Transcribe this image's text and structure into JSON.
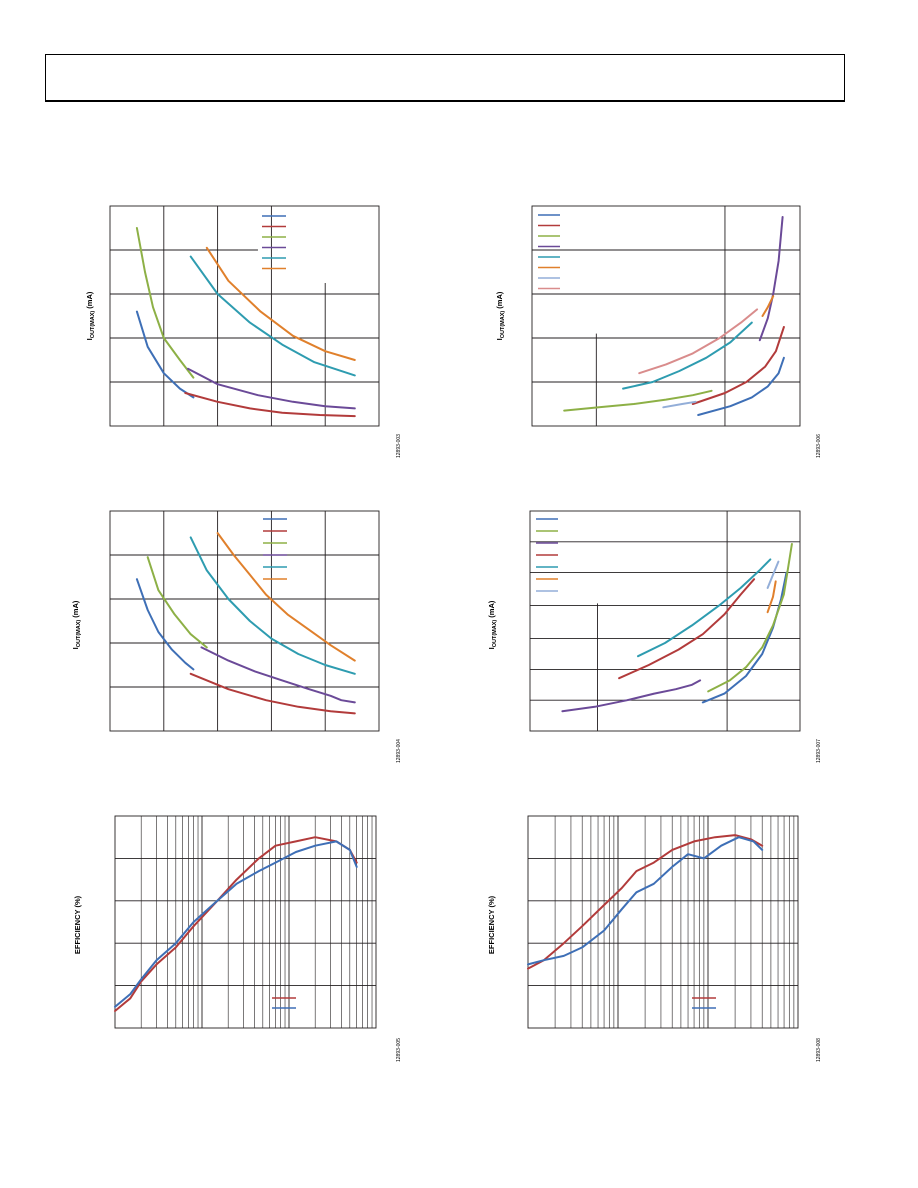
{
  "colors": {
    "blue": "#3e6fb6",
    "red": "#b23b3b",
    "green": "#8db046",
    "purple": "#6b4a98",
    "teal": "#2e9cb0",
    "orange": "#e0802c",
    "lightblue": "#93aed8",
    "pink": "#d98c8c"
  },
  "charts": [
    {
      "ylabel": "I",
      "ylabel_sub": "OUT(MAX)",
      "ylabel_unit": "(mA)",
      "fig_id": "12893-003"
    },
    {
      "ylabel": "I",
      "ylabel_sub": "OUT(MAX)",
      "ylabel_unit": "(mA)",
      "fig_id": "12893-006"
    },
    {
      "ylabel": "I",
      "ylabel_sub": "OUT(MAX)",
      "ylabel_unit": "(mA)",
      "fig_id": "12893-004"
    },
    {
      "ylabel": "I",
      "ylabel_sub": "OUT(MAX)",
      "ylabel_unit": "(mA)",
      "fig_id": "12893-007"
    },
    {
      "ylabel": "EFFICIENCY (%)",
      "fig_id": "12893-005"
    },
    {
      "ylabel": "EFFICIENCY (%)",
      "fig_id": "12893-008"
    }
  ],
  "chart_data": [
    {
      "type": "line",
      "xlim": [
        0,
        100
      ],
      "ylim": [
        0,
        100
      ],
      "grid": true,
      "legend": "top-right",
      "series": [
        {
          "color": "blue",
          "points": [
            [
              10,
              52
            ],
            [
              14,
              36
            ],
            [
              20,
              24
            ],
            [
              26,
              17
            ],
            [
              31,
              13
            ]
          ]
        },
        {
          "color": "red",
          "points": [
            [
              28,
              15
            ],
            [
              40,
              11
            ],
            [
              52,
              8
            ],
            [
              64,
              6
            ],
            [
              78,
              5
            ],
            [
              91,
              4.5
            ]
          ]
        },
        {
          "color": "green",
          "points": [
            [
              10,
              90
            ],
            [
              13,
              70
            ],
            [
              16,
              54
            ],
            [
              20,
              40
            ],
            [
              26,
              30
            ],
            [
              31,
              22
            ]
          ]
        },
        {
          "color": "purple",
          "points": [
            [
              29,
              26
            ],
            [
              40,
              19
            ],
            [
              55,
              14
            ],
            [
              68,
              11
            ],
            [
              80,
              9
            ],
            [
              91,
              8
            ]
          ]
        },
        {
          "color": "teal",
          "points": [
            [
              30,
              77
            ],
            [
              40,
              60
            ],
            [
              52,
              47
            ],
            [
              64,
              37
            ],
            [
              76,
              29
            ],
            [
              91,
              23
            ]
          ]
        },
        {
          "color": "orange",
          "points": [
            [
              36,
              81
            ],
            [
              44,
              66
            ],
            [
              56,
              52
            ],
            [
              68,
              41
            ],
            [
              80,
              34
            ],
            [
              91,
              30
            ]
          ]
        }
      ]
    },
    {
      "type": "line",
      "xlim": [
        0,
        100
      ],
      "ylim": [
        0,
        100
      ],
      "grid": true,
      "legend": "top-left",
      "series": [
        {
          "color": "blue",
          "points": [
            [
              62,
              5
            ],
            [
              74,
              9
            ],
            [
              82,
              13
            ],
            [
              88,
              18
            ],
            [
              92,
              24
            ],
            [
              94,
              31
            ]
          ]
        },
        {
          "color": "red",
          "points": [
            [
              60,
              10
            ],
            [
              72,
              15
            ],
            [
              80,
              20
            ],
            [
              87,
              27
            ],
            [
              91,
              34
            ],
            [
              94,
              45
            ]
          ]
        },
        {
          "color": "green",
          "points": [
            [
              12,
              7
            ],
            [
              25,
              8.5
            ],
            [
              38,
              10
            ],
            [
              50,
              12
            ],
            [
              60,
              14
            ],
            [
              67,
              16
            ]
          ]
        },
        {
          "color": "purple",
          "points": [
            [
              85,
              39
            ],
            [
              88,
              49
            ],
            [
              90,
              60
            ],
            [
              92,
              75
            ],
            [
              93.5,
              95
            ]
          ]
        },
        {
          "color": "teal",
          "points": [
            [
              34,
              17
            ],
            [
              45,
              20
            ],
            [
              55,
              25
            ],
            [
              65,
              31
            ],
            [
              74,
              38
            ],
            [
              82,
              47
            ]
          ]
        },
        {
          "color": "orange",
          "points": [
            [
              86,
              50
            ],
            [
              88,
              54
            ],
            [
              90,
              59
            ]
          ]
        },
        {
          "color": "lightblue",
          "points": [
            [
              49,
              8.5
            ],
            [
              56,
              10
            ],
            [
              61,
              11
            ]
          ]
        },
        {
          "color": "pink",
          "points": [
            [
              40,
              24
            ],
            [
              50,
              28
            ],
            [
              60,
              33
            ],
            [
              70,
              40
            ],
            [
              78,
              47
            ],
            [
              84,
              53
            ]
          ]
        }
      ]
    },
    {
      "type": "line",
      "xlim": [
        0,
        100
      ],
      "ylim": [
        0,
        100
      ],
      "grid": true,
      "legend": "top-right",
      "series": [
        {
          "color": "blue",
          "points": [
            [
              10,
              69
            ],
            [
              14,
              55
            ],
            [
              18,
              45
            ],
            [
              23,
              37
            ],
            [
              28,
              31
            ],
            [
              31,
              28
            ]
          ]
        },
        {
          "color": "red",
          "points": [
            [
              30,
              26
            ],
            [
              44,
              19
            ],
            [
              58,
              14
            ],
            [
              70,
              11
            ],
            [
              82,
              9
            ],
            [
              91,
              8
            ]
          ]
        },
        {
          "color": "green",
          "points": [
            [
              14,
              79
            ],
            [
              18,
              64
            ],
            [
              24,
              53
            ],
            [
              30,
              44
            ],
            [
              36,
              38
            ]
          ]
        },
        {
          "color": "purple",
          "points": [
            [
              34,
              38
            ],
            [
              44,
              32
            ],
            [
              54,
              27
            ],
            [
              64,
              23
            ],
            [
              74,
              19
            ],
            [
              82,
              16
            ],
            [
              86,
              14
            ],
            [
              91,
              13
            ]
          ]
        },
        {
          "color": "teal",
          "points": [
            [
              30,
              88
            ],
            [
              36,
              73
            ],
            [
              44,
              60
            ],
            [
              52,
              50
            ],
            [
              60,
              42
            ],
            [
              70,
              35
            ],
            [
              80,
              30
            ],
            [
              91,
              26
            ]
          ]
        },
        {
          "color": "orange",
          "points": [
            [
              40,
              90
            ],
            [
              46,
              80
            ],
            [
              52,
              71
            ],
            [
              58,
              62
            ],
            [
              66,
              53
            ],
            [
              74,
              46
            ],
            [
              82,
              39
            ],
            [
              91,
              32
            ]
          ]
        }
      ]
    },
    {
      "type": "line",
      "xlim": [
        0,
        100
      ],
      "ylim": [
        0,
        100
      ],
      "grid": true,
      "legend": "top-left",
      "series": [
        {
          "color": "blue",
          "points": [
            [
              64,
              13
            ],
            [
              72,
              17
            ],
            [
              80,
              25
            ],
            [
              86,
              35
            ],
            [
              90,
              47
            ],
            [
              93,
              60
            ],
            [
              95,
              72
            ]
          ]
        },
        {
          "color": "green",
          "points": [
            [
              66,
              18
            ],
            [
              74,
              23
            ],
            [
              80,
              29
            ],
            [
              86,
              38
            ],
            [
              90,
              48
            ],
            [
              94,
              62
            ],
            [
              97,
              85
            ]
          ]
        },
        {
          "color": "purple",
          "points": [
            [
              12,
              9
            ],
            [
              24,
              11
            ],
            [
              36,
              14
            ],
            [
              46,
              17
            ],
            [
              54,
              19
            ],
            [
              60,
              21
            ],
            [
              63,
              23
            ]
          ]
        },
        {
          "color": "red",
          "points": [
            [
              33,
              24
            ],
            [
              44,
              30
            ],
            [
              55,
              37
            ],
            [
              64,
              44
            ],
            [
              72,
              53
            ],
            [
              78,
              62
            ],
            [
              83,
              69
            ]
          ]
        },
        {
          "color": "teal",
          "points": [
            [
              40,
              34
            ],
            [
              50,
              40
            ],
            [
              60,
              48
            ],
            [
              70,
              57
            ],
            [
              78,
              65
            ],
            [
              85,
              73
            ],
            [
              89,
              78
            ]
          ]
        },
        {
          "color": "orange",
          "points": [
            [
              88,
              54
            ],
            [
              90,
              61
            ],
            [
              91,
              68
            ]
          ]
        },
        {
          "color": "lightblue",
          "points": [
            [
              88,
              65
            ],
            [
              90,
              71
            ],
            [
              92,
              77
            ]
          ]
        }
      ]
    },
    {
      "type": "line",
      "xscale": "log",
      "xlim": [
        0.001,
        1
      ],
      "ylim": [
        40,
        90
      ],
      "grid": true,
      "legend": "bottom-right",
      "series": [
        {
          "color": "red",
          "points": [
            [
              0.001,
              44
            ],
            [
              0.0015,
              47
            ],
            [
              0.002,
              51
            ],
            [
              0.003,
              55
            ],
            [
              0.005,
              59
            ],
            [
              0.008,
              64
            ],
            [
              0.015,
              70
            ],
            [
              0.025,
              75
            ],
            [
              0.045,
              80
            ],
            [
              0.07,
              83
            ],
            [
              0.12,
              84
            ],
            [
              0.2,
              85
            ],
            [
              0.35,
              84
            ],
            [
              0.5,
              82
            ],
            [
              0.6,
              79
            ]
          ]
        },
        {
          "color": "blue",
          "points": [
            [
              0.001,
              45
            ],
            [
              0.0015,
              48
            ],
            [
              0.002,
              51.5
            ],
            [
              0.003,
              56
            ],
            [
              0.005,
              60
            ],
            [
              0.008,
              65
            ],
            [
              0.015,
              70
            ],
            [
              0.025,
              74
            ],
            [
              0.045,
              77
            ],
            [
              0.07,
              79
            ],
            [
              0.12,
              81.5
            ],
            [
              0.2,
              83
            ],
            [
              0.35,
              84
            ],
            [
              0.5,
              82
            ],
            [
              0.6,
              78
            ]
          ]
        }
      ]
    },
    {
      "type": "line",
      "xscale": "log",
      "xlim": [
        0.001,
        1
      ],
      "ylim": [
        40,
        90
      ],
      "grid": true,
      "legend": "bottom-right",
      "series": [
        {
          "color": "red",
          "points": [
            [
              0.001,
              54
            ],
            [
              0.0015,
              56
            ],
            [
              0.0025,
              60
            ],
            [
              0.004,
              64
            ],
            [
              0.007,
              69
            ],
            [
              0.011,
              73
            ],
            [
              0.016,
              77
            ],
            [
              0.025,
              79
            ],
            [
              0.04,
              82
            ],
            [
              0.07,
              84
            ],
            [
              0.12,
              85
            ],
            [
              0.2,
              85.5
            ],
            [
              0.3,
              84.5
            ],
            [
              0.4,
              83
            ]
          ]
        },
        {
          "color": "blue",
          "points": [
            [
              0.001,
              55
            ],
            [
              0.0015,
              56
            ],
            [
              0.0025,
              57
            ],
            [
              0.004,
              59
            ],
            [
              0.007,
              63
            ],
            [
              0.011,
              68
            ],
            [
              0.016,
              72
            ],
            [
              0.025,
              74
            ],
            [
              0.04,
              78
            ],
            [
              0.06,
              81
            ],
            [
              0.09,
              80
            ],
            [
              0.14,
              83
            ],
            [
              0.22,
              85
            ],
            [
              0.32,
              84
            ],
            [
              0.4,
              82
            ]
          ]
        }
      ]
    }
  ]
}
